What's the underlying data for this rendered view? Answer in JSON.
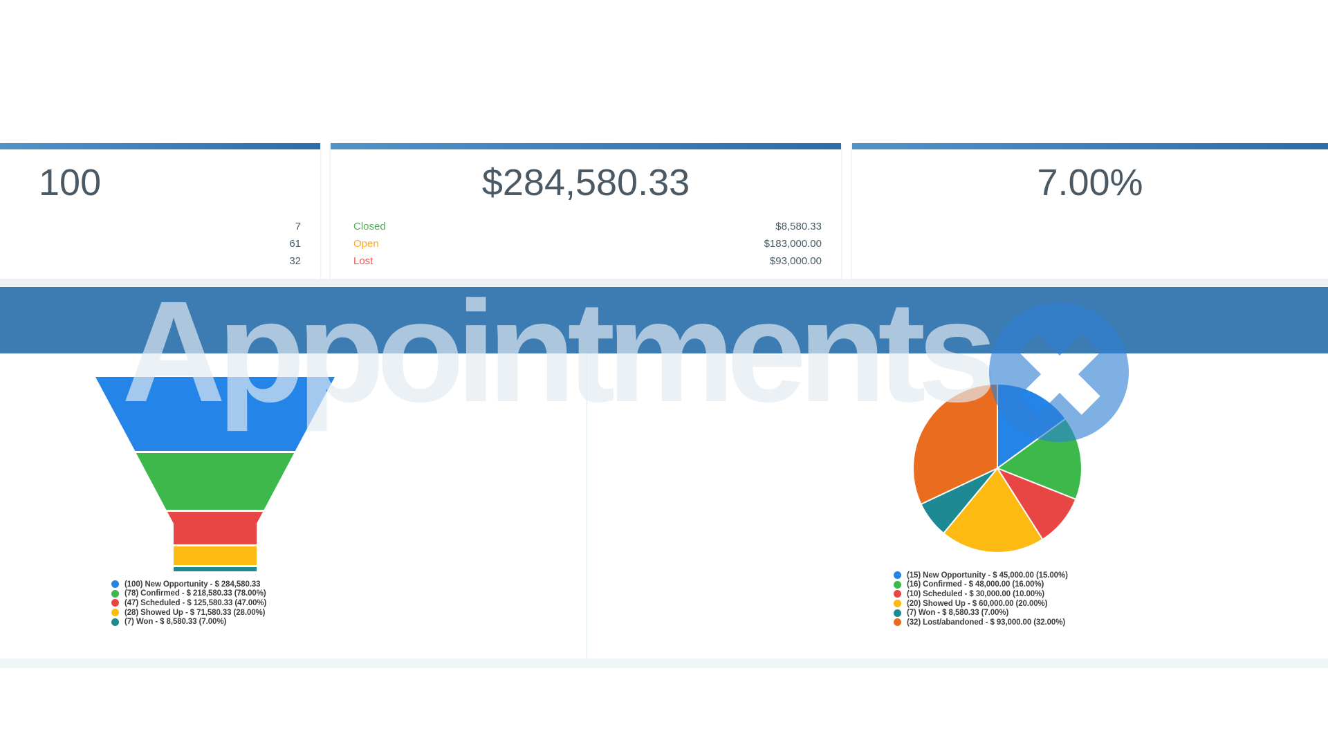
{
  "watermark": {
    "text": "Appointments",
    "badge_icon": "x-close"
  },
  "colors": {
    "banner": "#3c7cb3",
    "card_border_from": "#4e93ca",
    "card_border_to": "#2a6ea9",
    "badge": "rgba(47,128,212,0.62)",
    "closed_green": "#4caf50",
    "open_orange": "#ffa726",
    "lost_red": "#ef5350"
  },
  "cards": [
    {
      "headline": "100",
      "rows": [
        {
          "label": "",
          "label_color": "",
          "value": "7"
        },
        {
          "label": "",
          "label_color": "",
          "value": "61"
        },
        {
          "label": "",
          "label_color": "",
          "value": "32"
        }
      ]
    },
    {
      "headline": "$284,580.33",
      "rows": [
        {
          "label": "Closed",
          "label_color": "#4caf50",
          "value": "$8,580.33"
        },
        {
          "label": "Open",
          "label_color": "#ffa726",
          "value": "$183,000.00"
        },
        {
          "label": "Lost",
          "label_color": "#ef5350",
          "value": "$93,000.00"
        }
      ]
    },
    {
      "headline": "7.00%",
      "rows": []
    }
  ],
  "chart_data": [
    {
      "type": "funnel",
      "title": "Appointments funnel",
      "legend_position": "bottom-left",
      "series": [
        {
          "count": 100,
          "label": "New Opportunity",
          "amount": 284580.33,
          "percent": 100,
          "color": "#2584e8",
          "legend_text": "(100) New Opportunity - $ 284,580.33"
        },
        {
          "count": 78,
          "label": "Confirmed",
          "amount": 218580.33,
          "percent": 78,
          "color": "#3cb94a",
          "legend_text": "(78) Confirmed - $ 218,580.33 (78.00%)"
        },
        {
          "count": 47,
          "label": "Scheduled",
          "amount": 125580.33,
          "percent": 47,
          "color": "#e84545",
          "legend_text": "(47) Scheduled - $ 125,580.33 (47.00%)"
        },
        {
          "count": 28,
          "label": "Showed Up",
          "amount": 71580.33,
          "percent": 28,
          "color": "#fcba12",
          "legend_text": "(28) Showed Up - $ 71,580.33 (28.00%)"
        },
        {
          "count": 7,
          "label": "Won",
          "amount": 8580.33,
          "percent": 7,
          "color": "#1d8a93",
          "legend_text": "(7) Won - $ 8,580.33 (7.00%)"
        }
      ]
    },
    {
      "type": "pie",
      "title": "Appointments breakdown",
      "start_angle_deg": -90,
      "direction": "clockwise",
      "legend_position": "bottom-left",
      "series": [
        {
          "count": 15,
          "label": "New Opportunity",
          "amount": 45000,
          "percent": 15,
          "color": "#2584e8",
          "legend_text": "(15) New Opportunity - $ 45,000.00 (15.00%)"
        },
        {
          "count": 16,
          "label": "Confirmed",
          "amount": 48000,
          "percent": 16,
          "color": "#3cb94a",
          "legend_text": "(16) Confirmed - $ 48,000.00 (16.00%)"
        },
        {
          "count": 10,
          "label": "Scheduled",
          "amount": 30000,
          "percent": 10,
          "color": "#e84545",
          "legend_text": "(10) Scheduled - $ 30,000.00 (10.00%)"
        },
        {
          "count": 20,
          "label": "Showed Up",
          "amount": 60000,
          "percent": 20,
          "color": "#fcba12",
          "legend_text": "(20) Showed Up - $ 60,000.00 (20.00%)"
        },
        {
          "count": 7,
          "label": "Won",
          "amount": 8580.33,
          "percent": 7,
          "color": "#1d8a93",
          "legend_text": "(7) Won - $ 8,580.33 (7.00%)"
        },
        {
          "count": 32,
          "label": "Lost/abandoned",
          "amount": 93000,
          "percent": 32,
          "color": "#ea6c1f",
          "legend_text": "(32) Lost/abandoned - $ 93,000.00 (32.00%)"
        }
      ]
    }
  ]
}
